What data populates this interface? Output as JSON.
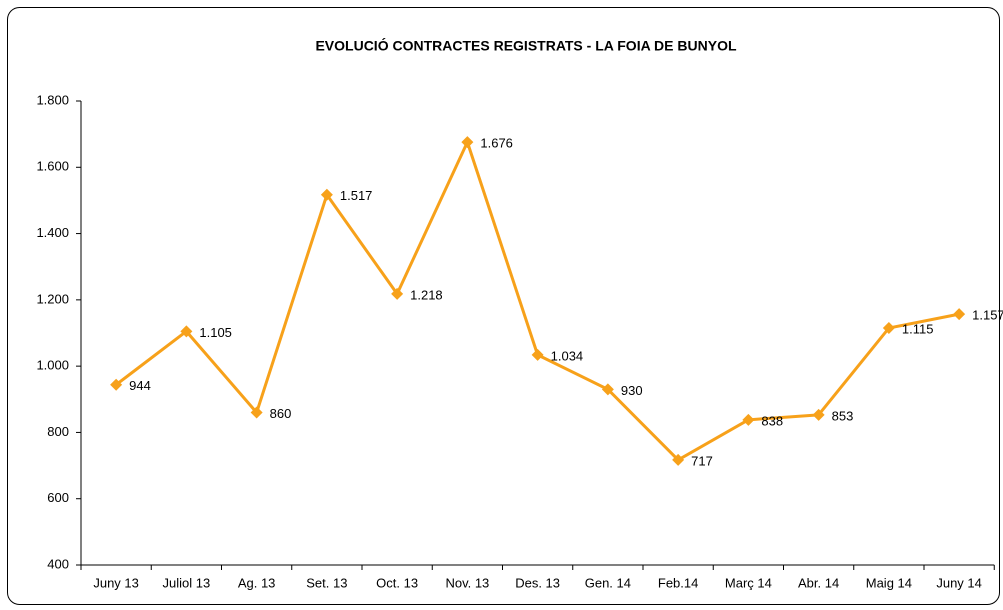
{
  "chart_data": {
    "type": "line",
    "title": "EVOLUCIÓ CONTRACTES REGISTRATS - LA FOIA DE BUNYOL",
    "categories": [
      "Juny 13",
      "Juliol 13",
      "Ag. 13",
      "Set. 13",
      "Oct. 13",
      "Nov. 13",
      "Des. 13",
      "Gen. 14",
      "Feb.14",
      "Març 14",
      "Abr. 14",
      "Maig 14",
      "Juny 14"
    ],
    "values": [
      944,
      1105,
      860,
      1517,
      1218,
      1676,
      1034,
      930,
      717,
      838,
      853,
      1115,
      1157
    ],
    "value_labels": [
      "944",
      "1.105",
      "860",
      "1.517",
      "1.218",
      "1.676",
      "1.034",
      "930",
      "717",
      "838",
      "853",
      "1.115",
      "1.157"
    ],
    "color": "#f7a11a",
    "ylim": [
      400,
      1800
    ],
    "yticks": [
      400,
      600,
      800,
      {
        "value": 1000,
        "label": "1.000"
      },
      {
        "value": 1200,
        "label": "1.200"
      },
      {
        "value": 1400,
        "label": "1.400"
      },
      {
        "value": 1600,
        "label": "1.600"
      },
      {
        "value": 1800,
        "label": "1.800"
      }
    ],
    "grid": false
  }
}
